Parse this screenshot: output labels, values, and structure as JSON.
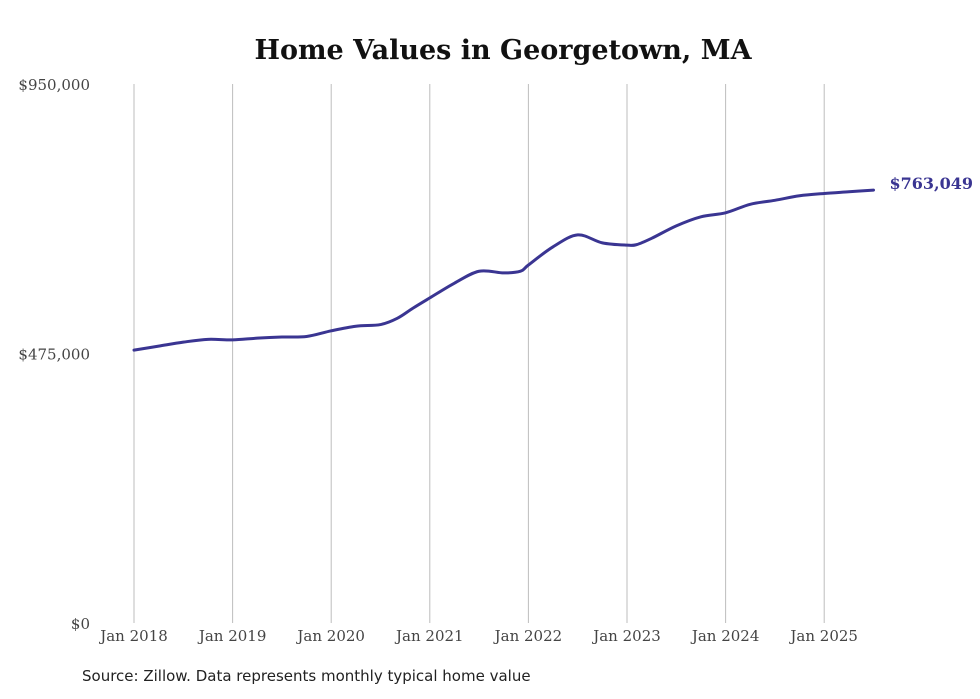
{
  "chart_data": {
    "type": "line",
    "title": "Home Values in Georgetown, MA",
    "xlabel": "",
    "ylabel": "",
    "ylim": [
      0,
      950000
    ],
    "y_ticks": [
      {
        "value": 0,
        "label": "$0"
      },
      {
        "value": 475000,
        "label": "$475,000"
      },
      {
        "value": 950000,
        "label": "$950,000"
      }
    ],
    "x_ticks": [
      {
        "value": 2018,
        "label": "Jan 2018"
      },
      {
        "value": 2019,
        "label": "Jan 2019"
      },
      {
        "value": 2020,
        "label": "Jan 2020"
      },
      {
        "value": 2021,
        "label": "Jan 2021"
      },
      {
        "value": 2022,
        "label": "Jan 2022"
      },
      {
        "value": 2023,
        "label": "Jan 2023"
      },
      {
        "value": 2024,
        "label": "Jan 2024"
      },
      {
        "value": 2025,
        "label": "Jan 2025"
      }
    ],
    "grid": "vertical",
    "series": [
      {
        "name": "Typical home value",
        "color": "#3a3592",
        "x": [
          2018.0,
          2018.25,
          2018.5,
          2018.75,
          2019.0,
          2019.25,
          2019.5,
          2019.75,
          2020.0,
          2020.25,
          2020.5,
          2020.67,
          2020.83,
          2021.0,
          2021.25,
          2021.5,
          2021.75,
          2021.92,
          2022.0,
          2022.25,
          2022.5,
          2022.75,
          2023.0,
          2023.1,
          2023.25,
          2023.5,
          2023.75,
          2024.0,
          2024.25,
          2024.5,
          2024.75,
          2025.0,
          2025.25,
          2025.5
        ],
        "values": [
          481000,
          488000,
          495000,
          500000,
          499000,
          502000,
          504000,
          505000,
          515000,
          523000,
          526000,
          537000,
          555000,
          573000,
          599000,
          620000,
          617000,
          620000,
          631000,
          663000,
          684000,
          670000,
          666000,
          667000,
          678000,
          700000,
          716000,
          723000,
          738000,
          745000,
          753000,
          757000,
          760000,
          763049
        ]
      }
    ],
    "end_label": "$763,049",
    "legend": "none"
  },
  "source": "Source: Zillow. Data represents monthly typical home value"
}
